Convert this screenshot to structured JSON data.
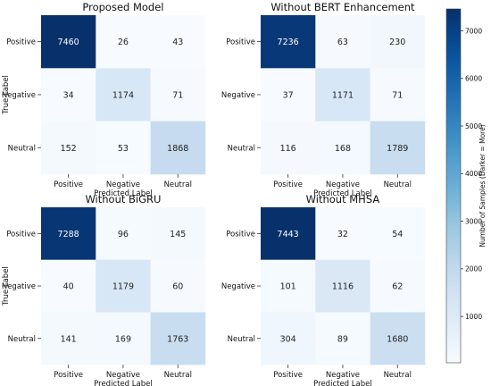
{
  "chart_data": {
    "type": "heatmap",
    "panels": [
      {
        "title": "Proposed Model",
        "row_labels": [
          "Positive",
          "Negative",
          "Neutral"
        ],
        "col_labels": [
          "Positive",
          "Negative",
          "Neutral"
        ],
        "xlabel": "Predicted Label",
        "ylabel": "True Label",
        "matrix": [
          [
            7460,
            26,
            43
          ],
          [
            34,
            1174,
            71
          ],
          [
            152,
            53,
            1868
          ]
        ]
      },
      {
        "title": "Without BERT Enhancement",
        "row_labels": [
          "Positive",
          "Negative",
          "Neutral"
        ],
        "col_labels": [
          "Positive",
          "Negative",
          "Neutral"
        ],
        "xlabel": "Predicted Label",
        "ylabel": "",
        "matrix": [
          [
            7236,
            63,
            230
          ],
          [
            37,
            1171,
            71
          ],
          [
            116,
            168,
            1789
          ]
        ]
      },
      {
        "title": "Without BiGRU",
        "row_labels": [
          "Positive",
          "Negative",
          "Neutral"
        ],
        "col_labels": [
          "Positive",
          "Negative",
          "Neutral"
        ],
        "xlabel": "Predicted Label",
        "ylabel": "True Label",
        "matrix": [
          [
            7288,
            96,
            145
          ],
          [
            40,
            1179,
            60
          ],
          [
            141,
            169,
            1763
          ]
        ]
      },
      {
        "title": "Without MHSA",
        "row_labels": [
          "Positive",
          "Negative",
          "Neutral"
        ],
        "col_labels": [
          "Positive",
          "Negative",
          "Neutral"
        ],
        "xlabel": "Predicted Label",
        "ylabel": "",
        "matrix": [
          [
            7443,
            32,
            54
          ],
          [
            101,
            1116,
            62
          ],
          [
            304,
            89,
            1680
          ]
        ]
      }
    ],
    "colorbar": {
      "label": "Number of Samples (Darker = More)",
      "ticks": [
        1000,
        2000,
        3000,
        4000,
        5000,
        6000,
        7000
      ],
      "range": [
        26,
        7460
      ],
      "colormap": "Blues",
      "color_low": "#f7fbff",
      "color_high": "#08306b"
    }
  }
}
